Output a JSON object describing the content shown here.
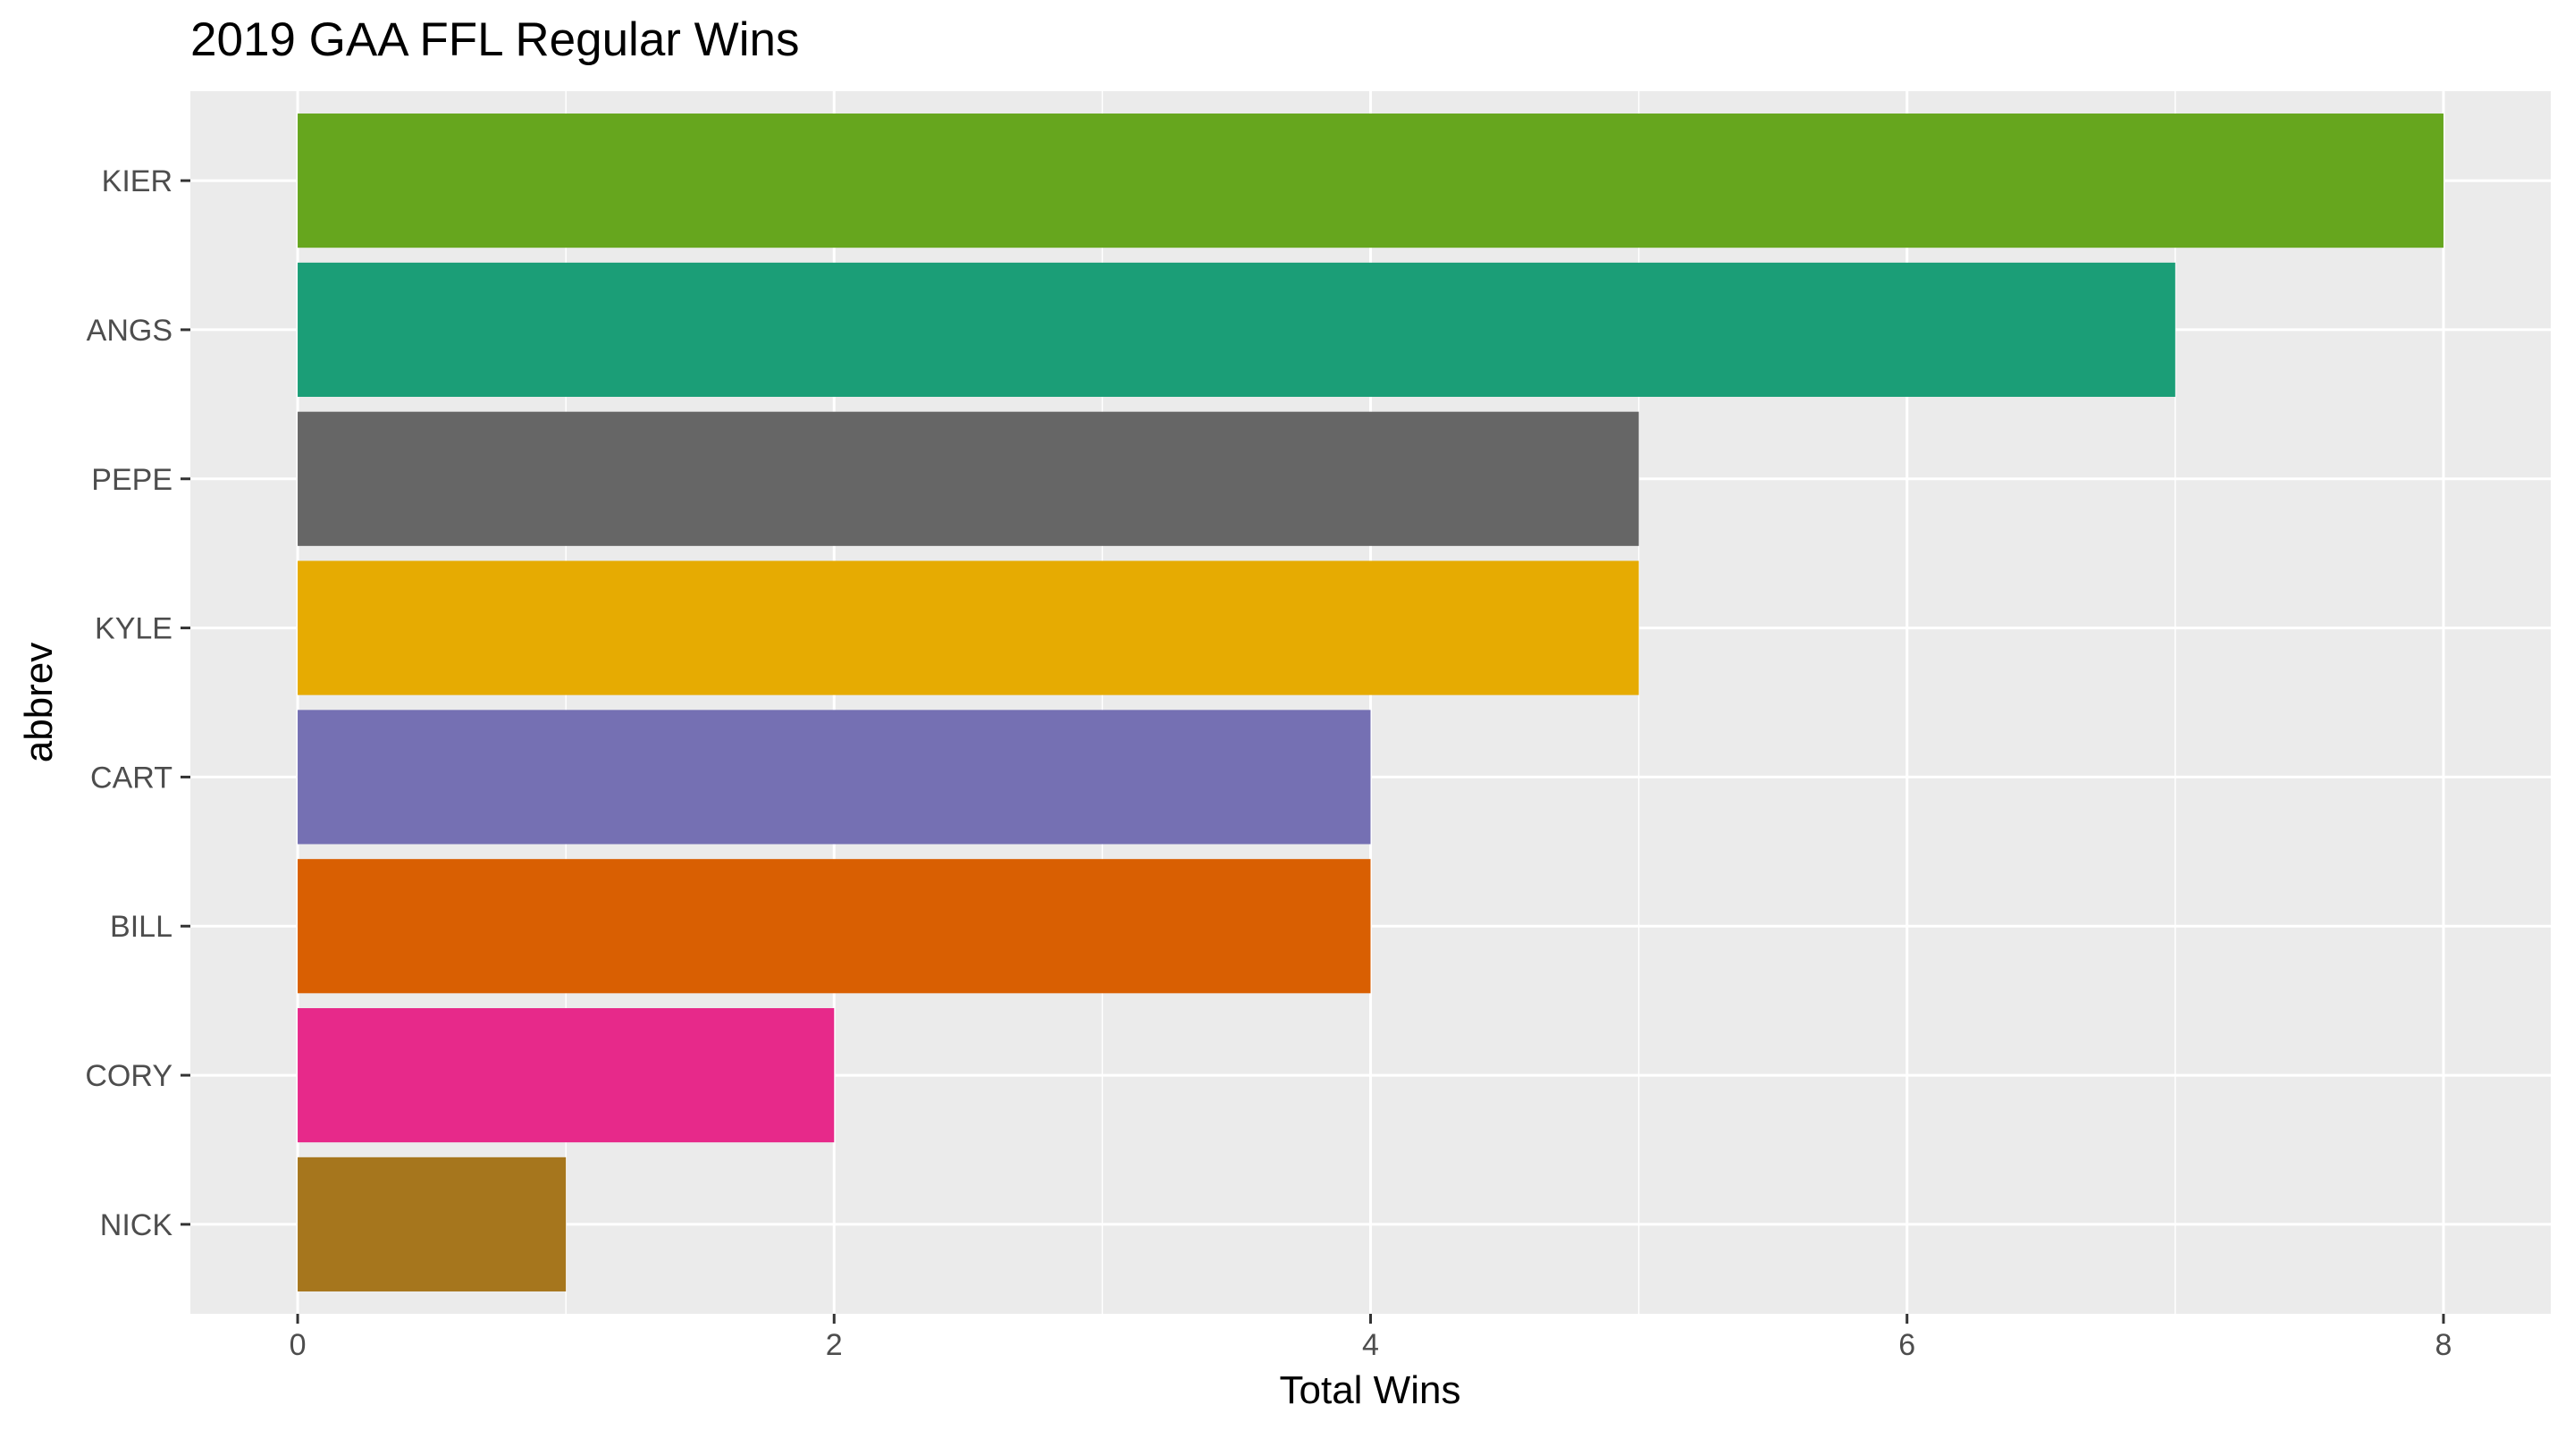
{
  "chart_data": {
    "type": "bar",
    "orientation": "horizontal",
    "title": "2019 GAA FFL Regular Wins",
    "xlabel": "Total Wins",
    "ylabel": "abbrev",
    "xlim": [
      -0.4,
      8.4
    ],
    "xticks": [
      0,
      2,
      4,
      6,
      8
    ],
    "xtick_labels": [
      "0",
      "2",
      "4",
      "6",
      "8"
    ],
    "grid": true,
    "legend": "none",
    "categories": [
      "KIER",
      "ANGS",
      "PEPE",
      "KYLE",
      "CART",
      "BILL",
      "CORY",
      "NICK"
    ],
    "values": [
      8,
      7,
      5,
      5,
      4,
      4,
      2,
      1
    ],
    "colors": [
      "#66A61E",
      "#1B9E77",
      "#666666",
      "#E6AB02",
      "#7570B3",
      "#D95F02",
      "#E7298A",
      "#A6761D"
    ],
    "panel_background": "#EBEBEB",
    "grid_color": "#FFFFFF"
  }
}
